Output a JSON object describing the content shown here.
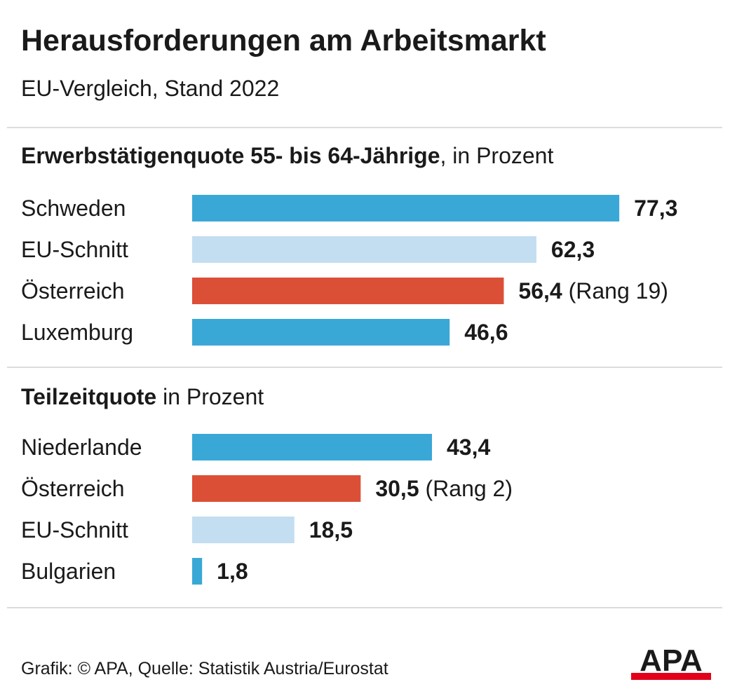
{
  "title": "Herausforderungen am Arbeitsmarkt",
  "subtitle": "EU-Vergleich, Stand 2022",
  "colors": {
    "highlight_blue": "#3aa8d6",
    "eu_average": "#c2def0",
    "austria": "#dc4f37"
  },
  "chart_data": [
    {
      "type": "bar",
      "orientation": "horizontal",
      "title_bold": "Erwerbstätigenquote 55- bis 64-Jährige",
      "title_rest": ", in Prozent",
      "categories": [
        "Schweden",
        "EU-Schnitt",
        "Österreich",
        "Luxemburg"
      ],
      "values": [
        77.3,
        62.3,
        56.4,
        46.6
      ],
      "value_labels": [
        "77,3",
        "62,3",
        "56,4",
        "46,6"
      ],
      "annotations": [
        "",
        "",
        "(Rang 19)",
        ""
      ],
      "bar_colors": [
        "#3aa8d6",
        "#c2def0",
        "#dc4f37",
        "#3aa8d6"
      ]
    },
    {
      "type": "bar",
      "orientation": "horizontal",
      "title_bold": "Teilzeitquote",
      "title_rest": " in Prozent",
      "categories": [
        "Niederlande",
        "Österreich",
        "EU-Schnitt",
        "Bulgarien"
      ],
      "values": [
        43.4,
        30.5,
        18.5,
        1.8
      ],
      "value_labels": [
        "43,4",
        "30,5",
        "18,5",
        "1,8"
      ],
      "annotations": [
        "",
        "(Rang 2)",
        "",
        ""
      ],
      "bar_colors": [
        "#3aa8d6",
        "#dc4f37",
        "#c2def0",
        "#3aa8d6"
      ]
    }
  ],
  "footer": {
    "credit": "Grafik: © APA, Quelle: Statistik Austria/Eurostat"
  },
  "logo": {
    "text": "APA",
    "bar_color": "#e2001a"
  }
}
